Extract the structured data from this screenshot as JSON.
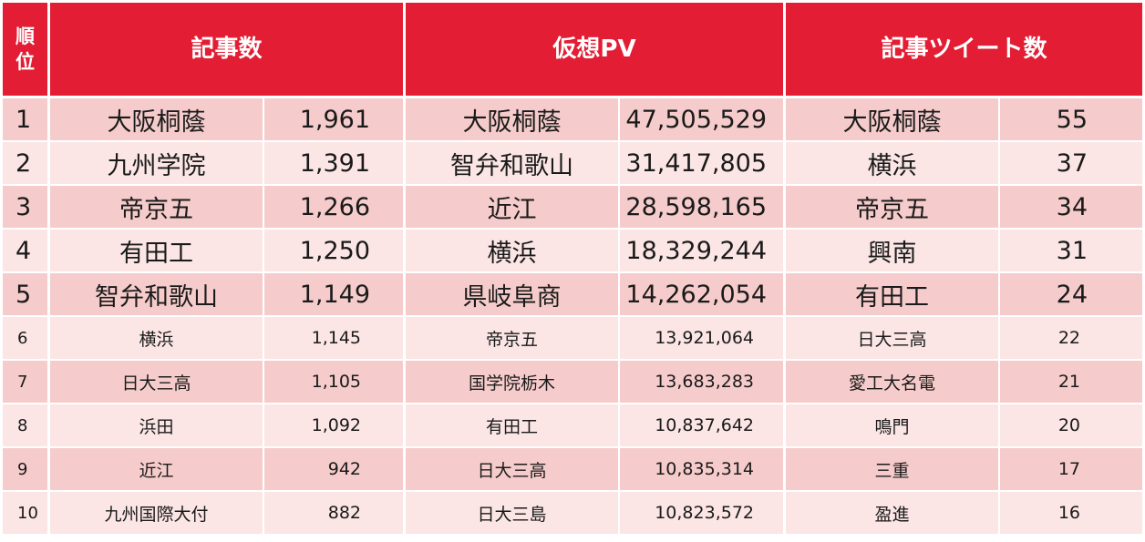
{
  "headers": {
    "rank": "順\n位",
    "articles": "記事数",
    "pv": "仮想PV",
    "tweets": "記事ツイート数"
  },
  "rows": [
    {
      "rank": "1",
      "a_name": "大阪桐蔭",
      "a_val": "1,961",
      "p_name": "大阪桐蔭",
      "p_val": "47,505,529",
      "t_name": "大阪桐蔭",
      "t_val": "55"
    },
    {
      "rank": "2",
      "a_name": "九州学院",
      "a_val": "1,391",
      "p_name": "智弁和歌山",
      "p_val": "31,417,805",
      "t_name": "横浜",
      "t_val": "37"
    },
    {
      "rank": "3",
      "a_name": "帝京五",
      "a_val": "1,266",
      "p_name": "近江",
      "p_val": "28,598,165",
      "t_name": "帝京五",
      "t_val": "34"
    },
    {
      "rank": "4",
      "a_name": "有田工",
      "a_val": "1,250",
      "p_name": "横浜",
      "p_val": "18,329,244",
      "t_name": "興南",
      "t_val": "31"
    },
    {
      "rank": "5",
      "a_name": "智弁和歌山",
      "a_val": "1,149",
      "p_name": "県岐阜商",
      "p_val": "14,262,054",
      "t_name": "有田工",
      "t_val": "24"
    },
    {
      "rank": "6",
      "a_name": "横浜",
      "a_val": "1,145",
      "p_name": "帝京五",
      "p_val": "13,921,064",
      "t_name": "日大三高",
      "t_val": "22"
    },
    {
      "rank": "7",
      "a_name": "日大三高",
      "a_val": "1,105",
      "p_name": "国学院栃木",
      "p_val": "13,683,283",
      "t_name": "愛工大名電",
      "t_val": "21"
    },
    {
      "rank": "8",
      "a_name": "浜田",
      "a_val": "1,092",
      "p_name": "有田工",
      "p_val": "10,837,642",
      "t_name": "鳴門",
      "t_val": "20"
    },
    {
      "rank": "9",
      "a_name": "近江",
      "a_val": "942",
      "p_name": "日大三高",
      "p_val": "10,835,314",
      "t_name": "三重",
      "t_val": "17"
    },
    {
      "rank": "10",
      "a_name": "九州国際大付",
      "a_val": "882",
      "p_name": "日大三島",
      "p_val": "10,823,572",
      "t_name": "盈進",
      "t_val": "16"
    }
  ]
}
